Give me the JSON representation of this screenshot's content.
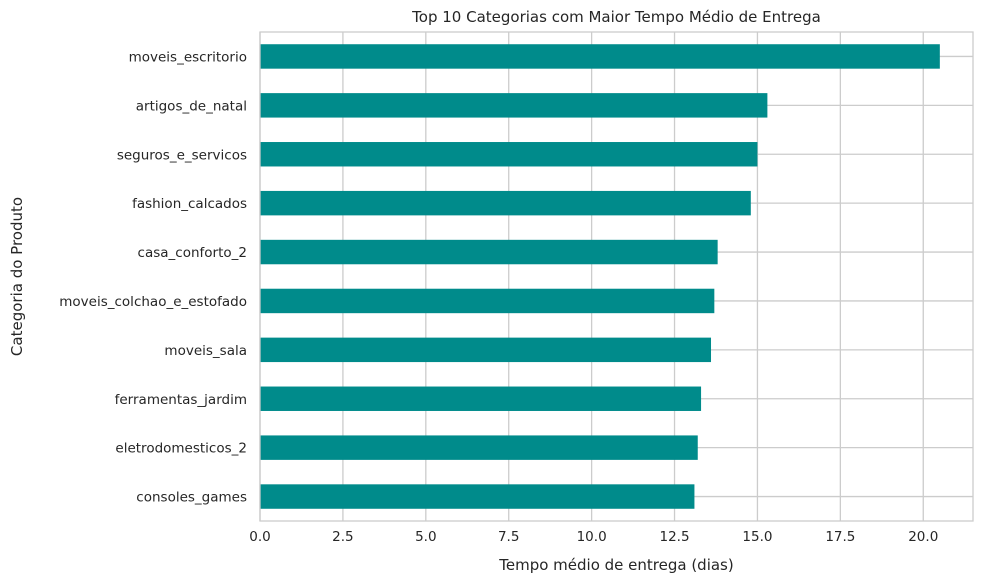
{
  "chart_data": {
    "type": "bar",
    "orientation": "horizontal",
    "title": "Top 10 Categorias com Maior Tempo Médio de Entrega",
    "xlabel": "Tempo médio de entrega (dias)",
    "ylabel": "Categoria do Produto",
    "categories": [
      "moveis_escritorio",
      "artigos_de_natal",
      "seguros_e_servicos",
      "fashion_calcados",
      "casa_conforto_2",
      "moveis_colchao_e_estofado",
      "moveis_sala",
      "ferramentas_jardim",
      "eletrodomesticos_2",
      "consoles_games"
    ],
    "values": [
      20.5,
      15.3,
      15.0,
      14.8,
      13.8,
      13.7,
      13.6,
      13.3,
      13.2,
      13.1
    ],
    "xlim": [
      0,
      21.5
    ],
    "xticks": [
      "0.0",
      "2.5",
      "5.0",
      "7.5",
      "10.0",
      "12.5",
      "15.0",
      "17.5",
      "20.0"
    ],
    "bar_color": "#008b8b",
    "grid": true
  }
}
